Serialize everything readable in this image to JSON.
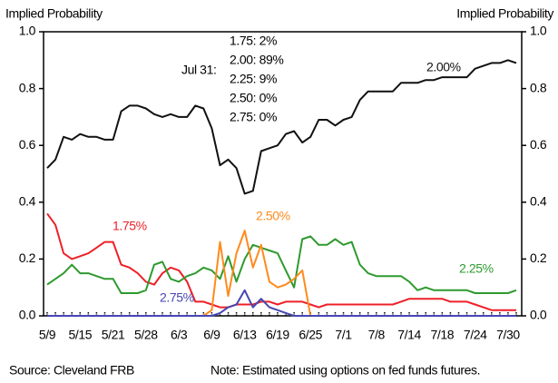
{
  "chart_data": {
    "type": "line",
    "y_axis_label": "Implied Probability",
    "y2_axis_label": "Implied Probability",
    "categories": [
      "5/9",
      null,
      null,
      null,
      "5/15",
      null,
      null,
      null,
      "5/21",
      null,
      null,
      null,
      "5/28",
      null,
      null,
      null,
      "6/3",
      null,
      null,
      null,
      "6/9",
      null,
      null,
      null,
      "6/13",
      null,
      null,
      null,
      "6/19",
      null,
      null,
      null,
      "6/25",
      null,
      null,
      null,
      "7/1",
      null,
      null,
      null,
      "7/8",
      null,
      null,
      null,
      "7/14",
      null,
      null,
      null,
      "7/18",
      null,
      null,
      null,
      "7/24",
      null,
      null,
      null,
      "7/30",
      null
    ],
    "ylim": [
      0,
      1
    ],
    "yticks": [
      {
        "value": 0,
        "label": "0.0"
      },
      0.2,
      0.4,
      0.6,
      0.8,
      {
        "value": 1,
        "label": "1.0"
      }
    ],
    "y2lim": [
      0,
      1
    ],
    "y2ticks": [
      {
        "value": 0,
        "label": "0.0"
      },
      0.2,
      0.4,
      0.6,
      0.8,
      {
        "value": 1,
        "label": "1.0"
      }
    ],
    "series": [
      {
        "name": "2.00%",
        "color": "#111111",
        "values": [
          0.52,
          0.55,
          0.63,
          0.62,
          0.64,
          0.63,
          0.63,
          0.62,
          0.62,
          0.72,
          0.74,
          0.74,
          0.73,
          0.71,
          0.7,
          0.71,
          0.7,
          0.7,
          0.74,
          0.73,
          0.66,
          0.53,
          0.55,
          0.52,
          0.43,
          0.44,
          0.58,
          0.59,
          0.6,
          0.64,
          0.65,
          0.61,
          0.63,
          0.69,
          0.69,
          0.67,
          0.69,
          0.7,
          0.76,
          0.79,
          0.79,
          0.79,
          0.79,
          0.82,
          0.82,
          0.82,
          0.83,
          0.83,
          0.84,
          0.84,
          0.84,
          0.84,
          0.87,
          0.88,
          0.89,
          0.89,
          0.9,
          0.89
        ]
      },
      {
        "name": "1.75%",
        "color": "#ee2028",
        "values": [
          0.36,
          0.32,
          0.22,
          0.2,
          0.21,
          0.22,
          0.24,
          0.26,
          0.26,
          0.18,
          0.17,
          0.15,
          0.12,
          0.11,
          0.15,
          0.17,
          0.16,
          0.12,
          0.05,
          0.05,
          0.04,
          0.03,
          0.03,
          0.04,
          0.04,
          0.04,
          0.05,
          0.05,
          0.04,
          0.05,
          0.05,
          0.05,
          0.04,
          0.03,
          0.04,
          0.04,
          0.04,
          0.04,
          0.04,
          0.04,
          0.04,
          0.04,
          0.04,
          0.05,
          0.06,
          0.06,
          0.06,
          0.06,
          0.06,
          0.05,
          0.05,
          0.05,
          0.04,
          0.03,
          0.02,
          0.02,
          0.02,
          0.02
        ]
      },
      {
        "name": "2.25%",
        "color": "#2e9a2e",
        "values": [
          0.11,
          0.13,
          0.15,
          0.18,
          0.15,
          0.15,
          0.14,
          0.13,
          0.13,
          0.08,
          0.08,
          0.08,
          0.09,
          0.18,
          0.19,
          0.13,
          0.12,
          0.14,
          0.15,
          0.17,
          0.16,
          0.13,
          0.21,
          0.12,
          0.2,
          0.25,
          0.24,
          0.23,
          0.22,
          0.16,
          0.1,
          0.27,
          0.28,
          0.25,
          0.25,
          0.27,
          0.25,
          0.26,
          0.18,
          0.15,
          0.14,
          0.14,
          0.14,
          0.14,
          0.12,
          0.09,
          0.1,
          0.09,
          0.09,
          0.09,
          0.09,
          0.09,
          0.08,
          0.08,
          0.08,
          0.08,
          0.08,
          0.09
        ]
      },
      {
        "name": "2.50%",
        "color": "#ff8a1c",
        "values": [
          0,
          0,
          0,
          0,
          0,
          0,
          0,
          0,
          0,
          0,
          0,
          0,
          0,
          0,
          0,
          0,
          0,
          0,
          0,
          0,
          0.02,
          0.26,
          0.07,
          0.22,
          0.3,
          0.17,
          0.25,
          0.12,
          0.1,
          0.11,
          0.13,
          0.16,
          0,
          0,
          0,
          0,
          0,
          0,
          0,
          0,
          0,
          0,
          0,
          0,
          0,
          0,
          0,
          0,
          0,
          0,
          0,
          0,
          0,
          0,
          0,
          0,
          0,
          0
        ]
      },
      {
        "name": "2.75%",
        "color": "#4646b4",
        "values": [
          0,
          0,
          0,
          0,
          0,
          0,
          0,
          0,
          0,
          0,
          0,
          0,
          0,
          0,
          0,
          0,
          0,
          0,
          0,
          0,
          0,
          0.01,
          0.03,
          0.04,
          0.09,
          0.03,
          0.06,
          0.03,
          0.02,
          0.01,
          0,
          0,
          0,
          0,
          0,
          0,
          0,
          0,
          0,
          0,
          0,
          0,
          0,
          0,
          0,
          0,
          0,
          0,
          0,
          0,
          0,
          0,
          0,
          0,
          0,
          0,
          0,
          0
        ]
      }
    ],
    "annotation": {
      "date": "Jul 31:",
      "lines": [
        "1.75: 2%",
        "2.00: 89%",
        "2.25: 9%",
        "2.50: 0%",
        "2.75: 0%"
      ]
    },
    "source": "Source: Cleveland FRB",
    "note": "Note: Estimated using options on fed funds futures."
  }
}
